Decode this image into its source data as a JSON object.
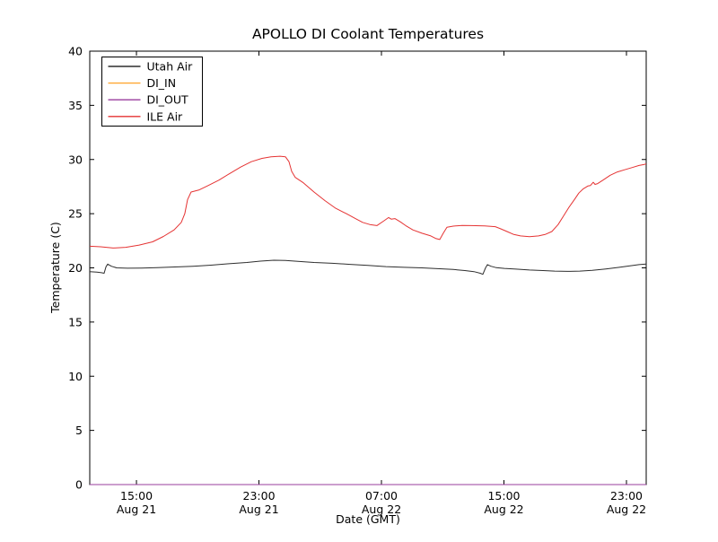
{
  "chart_data": {
    "type": "line",
    "title": "APOLLO DI Coolant Temperatures",
    "xlabel": "Date (GMT)",
    "ylabel": "Temperature (C)",
    "x_unit": "hours since Aug 21 00:00 GMT",
    "xlim": [
      11.95,
      48.29
    ],
    "ylim": [
      0,
      40
    ],
    "grid": false,
    "legend_position": "upper left",
    "y_ticks": [
      0,
      5,
      10,
      15,
      20,
      25,
      30,
      35,
      40
    ],
    "x_ticks": [
      {
        "value": 15,
        "line1": "15:00",
        "line2": "Aug 21"
      },
      {
        "value": 23,
        "line1": "23:00",
        "line2": "Aug 21"
      },
      {
        "value": 31,
        "line1": "07:00",
        "line2": "Aug 22"
      },
      {
        "value": 39,
        "line1": "15:00",
        "line2": "Aug 22"
      },
      {
        "value": 47,
        "line1": "23:00",
        "line2": "Aug 22"
      }
    ],
    "series": [
      {
        "name": "Utah Air",
        "color": "#2e2e2e",
        "width": 1,
        "points": [
          [
            11.95,
            19.65
          ],
          [
            12.42,
            19.6
          ],
          [
            12.71,
            19.55
          ],
          [
            12.89,
            19.5
          ],
          [
            13.01,
            20.1
          ],
          [
            13.12,
            20.35
          ],
          [
            13.36,
            20.15
          ],
          [
            13.71,
            20.0
          ],
          [
            14.41,
            19.97
          ],
          [
            15.35,
            19.98
          ],
          [
            16.35,
            20.02
          ],
          [
            17.52,
            20.08
          ],
          [
            18.69,
            20.15
          ],
          [
            19.86,
            20.25
          ],
          [
            21.04,
            20.38
          ],
          [
            22.21,
            20.5
          ],
          [
            23.09,
            20.62
          ],
          [
            23.97,
            20.7
          ],
          [
            24.73,
            20.68
          ],
          [
            25.55,
            20.6
          ],
          [
            26.6,
            20.5
          ],
          [
            27.78,
            20.42
          ],
          [
            28.95,
            20.32
          ],
          [
            30.12,
            20.22
          ],
          [
            31.29,
            20.12
          ],
          [
            32.46,
            20.05
          ],
          [
            33.64,
            20.0
          ],
          [
            34.81,
            19.92
          ],
          [
            35.69,
            19.85
          ],
          [
            36.45,
            19.75
          ],
          [
            37.04,
            19.65
          ],
          [
            37.45,
            19.5
          ],
          [
            37.62,
            19.4
          ],
          [
            37.8,
            20.0
          ],
          [
            37.92,
            20.3
          ],
          [
            38.15,
            20.15
          ],
          [
            38.5,
            20.02
          ],
          [
            39.03,
            19.95
          ],
          [
            39.79,
            19.88
          ],
          [
            40.67,
            19.8
          ],
          [
            41.55,
            19.75
          ],
          [
            42.31,
            19.7
          ],
          [
            43.13,
            19.68
          ],
          [
            43.95,
            19.7
          ],
          [
            44.77,
            19.78
          ],
          [
            45.65,
            19.9
          ],
          [
            46.53,
            20.05
          ],
          [
            47.23,
            20.18
          ],
          [
            47.82,
            20.3
          ],
          [
            48.29,
            20.35
          ]
        ]
      },
      {
        "name": "DI_IN",
        "color": "#ffa733",
        "width": 1,
        "points": [
          [
            11.95,
            0
          ],
          [
            48.29,
            0
          ]
        ]
      },
      {
        "name": "DI_OUT",
        "color": "#9a3d9e",
        "width": 1,
        "points": [
          [
            11.95,
            0
          ],
          [
            48.29,
            0
          ]
        ]
      },
      {
        "name": "ILE Air",
        "color": "#e53333",
        "width": 1,
        "points": [
          [
            11.95,
            22.0
          ],
          [
            12.66,
            21.95
          ],
          [
            13.48,
            21.83
          ],
          [
            14.3,
            21.9
          ],
          [
            15.18,
            22.1
          ],
          [
            16.05,
            22.4
          ],
          [
            16.76,
            22.9
          ],
          [
            17.46,
            23.5
          ],
          [
            17.93,
            24.2
          ],
          [
            18.16,
            25.0
          ],
          [
            18.34,
            26.3
          ],
          [
            18.57,
            27.0
          ],
          [
            19.1,
            27.2
          ],
          [
            19.69,
            27.6
          ],
          [
            20.39,
            28.1
          ],
          [
            21.09,
            28.7
          ],
          [
            21.8,
            29.3
          ],
          [
            22.5,
            29.8
          ],
          [
            23.2,
            30.1
          ],
          [
            23.79,
            30.25
          ],
          [
            24.38,
            30.3
          ],
          [
            24.73,
            30.25
          ],
          [
            24.96,
            29.8
          ],
          [
            25.14,
            28.9
          ],
          [
            25.37,
            28.35
          ],
          [
            25.9,
            27.85
          ],
          [
            26.6,
            27.0
          ],
          [
            27.31,
            26.2
          ],
          [
            28.01,
            25.5
          ],
          [
            28.71,
            25.0
          ],
          [
            29.3,
            24.55
          ],
          [
            29.77,
            24.2
          ],
          [
            30.24,
            24.0
          ],
          [
            30.7,
            23.9
          ],
          [
            31.17,
            24.35
          ],
          [
            31.47,
            24.65
          ],
          [
            31.64,
            24.5
          ],
          [
            31.88,
            24.55
          ],
          [
            32.23,
            24.25
          ],
          [
            32.58,
            23.9
          ],
          [
            33.05,
            23.5
          ],
          [
            33.64,
            23.2
          ],
          [
            34.22,
            22.95
          ],
          [
            34.57,
            22.7
          ],
          [
            34.81,
            22.62
          ],
          [
            35.04,
            23.2
          ],
          [
            35.28,
            23.75
          ],
          [
            35.69,
            23.85
          ],
          [
            36.27,
            23.92
          ],
          [
            36.86,
            23.9
          ],
          [
            37.74,
            23.87
          ],
          [
            38.44,
            23.8
          ],
          [
            38.79,
            23.6
          ],
          [
            39.2,
            23.35
          ],
          [
            39.61,
            23.1
          ],
          [
            40.08,
            22.95
          ],
          [
            40.67,
            22.88
          ],
          [
            41.26,
            22.95
          ],
          [
            41.72,
            23.1
          ],
          [
            42.13,
            23.35
          ],
          [
            42.54,
            24.0
          ],
          [
            42.9,
            24.8
          ],
          [
            43.25,
            25.6
          ],
          [
            43.6,
            26.3
          ],
          [
            43.89,
            26.9
          ],
          [
            44.18,
            27.3
          ],
          [
            44.48,
            27.55
          ],
          [
            44.65,
            27.6
          ],
          [
            44.83,
            27.9
          ],
          [
            44.95,
            27.7
          ],
          [
            45.12,
            27.78
          ],
          [
            45.47,
            28.1
          ],
          [
            45.94,
            28.55
          ],
          [
            46.41,
            28.85
          ],
          [
            46.88,
            29.05
          ],
          [
            47.35,
            29.25
          ],
          [
            47.82,
            29.45
          ],
          [
            48.17,
            29.55
          ],
          [
            48.29,
            29.6
          ]
        ]
      }
    ]
  }
}
